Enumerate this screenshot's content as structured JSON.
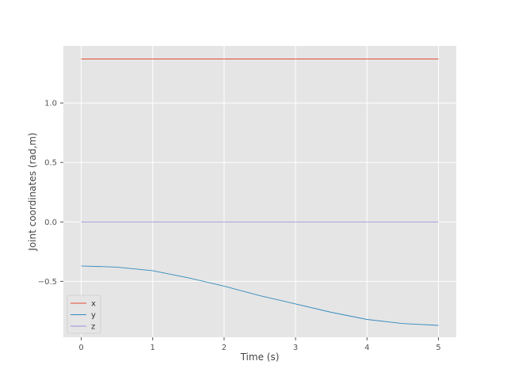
{
  "chart_data": {
    "type": "line",
    "title": "",
    "xlabel": "Time (s)",
    "ylabel": "Joint coordinates (rad,m)",
    "xlim": [
      -0.25,
      5.25
    ],
    "ylim": [
      -0.97,
      1.48
    ],
    "xticks": [
      0,
      1,
      2,
      3,
      4,
      5
    ],
    "xtick_labels": [
      "0",
      "1",
      "2",
      "3",
      "4",
      "5"
    ],
    "yticks": [
      -0.5,
      0.0,
      0.5,
      1.0
    ],
    "ytick_labels": [
      "−0.5",
      "0.0",
      "0.5",
      "1.0"
    ],
    "grid": true,
    "legend_position": "lower-left",
    "x": [
      0,
      0.5,
      1,
      1.5,
      2,
      2.5,
      3,
      3.5,
      4,
      4.5,
      5
    ],
    "series": [
      {
        "name": "x",
        "color": "#e24a33",
        "values": [
          1.37,
          1.37,
          1.37,
          1.37,
          1.37,
          1.37,
          1.37,
          1.37,
          1.37,
          1.37,
          1.37
        ]
      },
      {
        "name": "y",
        "color": "#348abd",
        "values": [
          -0.37,
          -0.38,
          -0.41,
          -0.47,
          -0.54,
          -0.62,
          -0.69,
          -0.76,
          -0.82,
          -0.855,
          -0.87
        ]
      },
      {
        "name": "z",
        "color": "#988ed5",
        "values": [
          0,
          0,
          0,
          0,
          0,
          0,
          0,
          0,
          0,
          0,
          0
        ]
      }
    ]
  }
}
